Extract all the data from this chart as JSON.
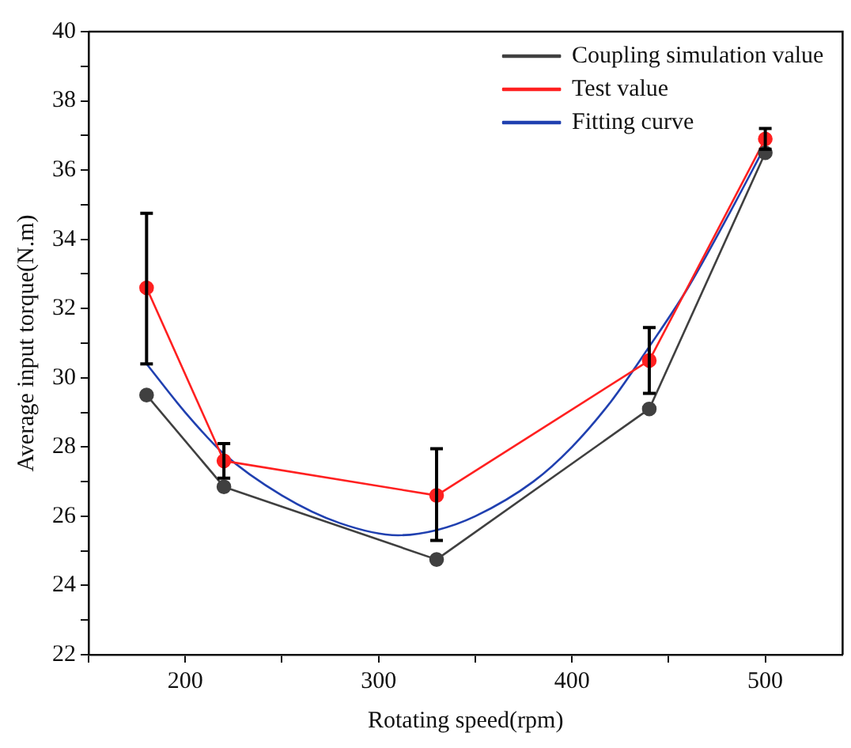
{
  "chart_data": {
    "type": "line",
    "xlabel": "Rotating speed(rpm)",
    "ylabel": "Average input torque(N.m)",
    "x": [
      180,
      220,
      330,
      440,
      500
    ],
    "series": [
      {
        "name": "Coupling simulation value",
        "color": "#404040",
        "marker": "circle",
        "values": [
          29.5,
          26.85,
          24.75,
          29.1,
          36.5
        ]
      },
      {
        "name": "Test value",
        "color": "#ff2020",
        "marker": "circle",
        "values": [
          32.6,
          27.6,
          26.6,
          30.5,
          36.9
        ],
        "errors": [
          [
            30.4,
            34.75
          ],
          [
            27.1,
            28.1
          ],
          [
            25.3,
            27.95
          ],
          [
            29.55,
            31.45
          ],
          [
            36.6,
            37.2
          ]
        ]
      },
      {
        "name": "Fitting curve",
        "color": "#2040b0",
        "marker": "none",
        "x": [
          180,
          200,
          220,
          250,
          280,
          310,
          330,
          350,
          380,
          400,
          420,
          440,
          460,
          480,
          500
        ],
        "values": [
          30.4,
          29.0,
          27.8,
          26.6,
          25.8,
          25.45,
          25.6,
          26.0,
          27.0,
          28.0,
          29.3,
          30.9,
          32.6,
          34.6,
          36.7
        ]
      }
    ],
    "xlim": [
      150,
      540
    ],
    "xticks": [
      {
        "value": 150,
        "label": null
      },
      200,
      {
        "value": 250,
        "label": null
      },
      300,
      {
        "value": 350,
        "label": null
      },
      400,
      {
        "value": 450,
        "label": null
      },
      500
    ],
    "ylim": [
      22,
      40
    ],
    "yticks": [
      22,
      {
        "value": 23,
        "label": null
      },
      24,
      {
        "value": 25,
        "label": null
      },
      26,
      {
        "value": 27,
        "label": null
      },
      28,
      {
        "value": 29,
        "label": null
      },
      30,
      {
        "value": 31,
        "label": null
      },
      32,
      {
        "value": 33,
        "label": null
      },
      34,
      {
        "value": 35,
        "label": null
      },
      36,
      {
        "value": 37,
        "label": null
      },
      38,
      {
        "value": 39,
        "label": null
      },
      40
    ],
    "grid": false,
    "legend": "top right",
    "line_style": "solid"
  }
}
